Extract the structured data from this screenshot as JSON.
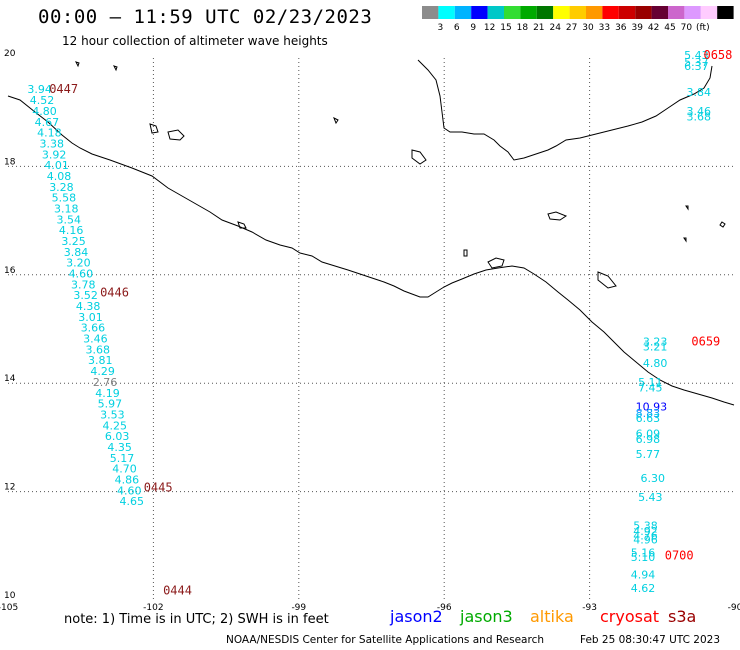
{
  "header": {
    "title": "00:00 – 11:59 UTC 02/23/2023",
    "subtitle": "12 hour collection of altimeter wave heights"
  },
  "colorbar": {
    "colors": [
      "#8c8c8c",
      "#00ffff",
      "#00b4ff",
      "#0000ff",
      "#00c8c8",
      "#33dd33",
      "#00aa00",
      "#007700",
      "#ffff00",
      "#ffcc00",
      "#ff9900",
      "#ff0000",
      "#cc0000",
      "#990000",
      "#660033",
      "#cc66cc",
      "#dd99ff",
      "#ffccff",
      "#000000"
    ],
    "labels": [
      "3",
      "6",
      "9",
      "12",
      "15",
      "18",
      "21",
      "24",
      "27",
      "30",
      "33",
      "36",
      "39",
      "42",
      "45",
      "70",
      "(ft)"
    ]
  },
  "axes": {
    "x_ticks": [
      "-105",
      "-102",
      "-99",
      "-96",
      "-93",
      "-90"
    ],
    "y_ticks": [
      "20",
      "18",
      "16",
      "14",
      "12",
      "10"
    ],
    "lon_range": [
      -105,
      -90
    ],
    "lat_range": [
      10,
      20
    ]
  },
  "tracks": [
    {
      "time": "0447",
      "time_color": "#8b1a1a",
      "time_lon": -104.15,
      "time_lat": 19.35,
      "points": [
        {
          "lon": -104.6,
          "lat": 19.35,
          "value": "3.94",
          "color": "#00d0e0"
        },
        {
          "lon": -104.55,
          "lat": 19.15,
          "value": "4.52",
          "color": "#00d0e0"
        },
        {
          "lon": -104.5,
          "lat": 18.95,
          "value": "4.80",
          "color": "#00d0e0"
        },
        {
          "lon": -104.45,
          "lat": 18.75,
          "value": "4.67",
          "color": "#00d0e0"
        },
        {
          "lon": -104.4,
          "lat": 18.55,
          "value": "4.18",
          "color": "#00d0e0"
        },
        {
          "lon": -104.35,
          "lat": 18.35,
          "value": "3.38",
          "color": "#00d0e0"
        },
        {
          "lon": -104.3,
          "lat": 18.15,
          "value": "3.92",
          "color": "#00d0e0"
        },
        {
          "lon": -104.25,
          "lat": 17.95,
          "value": "4.01",
          "color": "#00d0e0"
        },
        {
          "lon": -104.2,
          "lat": 17.75,
          "value": "4.08",
          "color": "#00d0e0"
        },
        {
          "lon": -104.15,
          "lat": 17.55,
          "value": "3.28",
          "color": "#00d0e0"
        },
        {
          "lon": -104.1,
          "lat": 17.35,
          "value": "5.58",
          "color": "#00d0e0"
        },
        {
          "lon": -104.05,
          "lat": 17.15,
          "value": "3.18",
          "color": "#00d0e0"
        },
        {
          "lon": -104.0,
          "lat": 16.95,
          "value": "3.54",
          "color": "#00d0e0"
        },
        {
          "lon": -103.95,
          "lat": 16.75,
          "value": "4.16",
          "color": "#00d0e0"
        }
      ]
    },
    {
      "time": "0446",
      "time_color": "#8b1a1a",
      "time_lon": -103.1,
      "time_lat": 15.6,
      "points": [
        {
          "lon": -103.9,
          "lat": 16.55,
          "value": "3.25",
          "color": "#00d0e0"
        },
        {
          "lon": -103.85,
          "lat": 16.35,
          "value": "3.84",
          "color": "#00d0e0"
        },
        {
          "lon": -103.8,
          "lat": 16.15,
          "value": "3.20",
          "color": "#00d0e0"
        },
        {
          "lon": -103.75,
          "lat": 15.95,
          "value": "4.60",
          "color": "#00d0e0"
        },
        {
          "lon": -103.7,
          "lat": 15.75,
          "value": "3.78",
          "color": "#00d0e0"
        },
        {
          "lon": -103.65,
          "lat": 15.55,
          "value": "3.52",
          "color": "#00d0e0"
        },
        {
          "lon": -103.6,
          "lat": 15.35,
          "value": "4.38",
          "color": "#00d0e0"
        },
        {
          "lon": -103.55,
          "lat": 15.15,
          "value": "3.01",
          "color": "#00d0e0"
        },
        {
          "lon": -103.5,
          "lat": 14.95,
          "value": "3.66",
          "color": "#00d0e0"
        },
        {
          "lon": -103.45,
          "lat": 14.75,
          "value": "3.46",
          "color": "#00d0e0"
        },
        {
          "lon": -103.4,
          "lat": 14.55,
          "value": "3.68",
          "color": "#00d0e0"
        },
        {
          "lon": -103.35,
          "lat": 14.35,
          "value": "3.81",
          "color": "#00d0e0"
        },
        {
          "lon": -103.3,
          "lat": 14.15,
          "value": "4.29",
          "color": "#00d0e0"
        },
        {
          "lon": -103.25,
          "lat": 13.95,
          "value": "2.76",
          "color": "#808080"
        },
        {
          "lon": -103.2,
          "lat": 13.75,
          "value": "4.19",
          "color": "#00d0e0"
        },
        {
          "lon": -103.15,
          "lat": 13.55,
          "value": "5.97",
          "color": "#00d0e0"
        }
      ]
    },
    {
      "time": "0445",
      "time_color": "#8b1a1a",
      "time_lon": -102.2,
      "time_lat": 12.0,
      "points": [
        {
          "lon": -103.1,
          "lat": 13.35,
          "value": "3.53",
          "color": "#00d0e0"
        },
        {
          "lon": -103.05,
          "lat": 13.15,
          "value": "4.25",
          "color": "#00d0e0"
        },
        {
          "lon": -103.0,
          "lat": 12.95,
          "value": "6.03",
          "color": "#00d0e0"
        },
        {
          "lon": -102.95,
          "lat": 12.75,
          "value": "4.35",
          "color": "#00d0e0"
        },
        {
          "lon": -102.9,
          "lat": 12.55,
          "value": "5.17",
          "color": "#00d0e0"
        },
        {
          "lon": -102.85,
          "lat": 12.35,
          "value": "4.70",
          "color": "#00d0e0"
        },
        {
          "lon": -102.8,
          "lat": 12.15,
          "value": "4.86",
          "color": "#00d0e0"
        },
        {
          "lon": -102.75,
          "lat": 11.95,
          "value": "4.60",
          "color": "#00d0e0"
        },
        {
          "lon": -102.7,
          "lat": 11.75,
          "value": "4.65",
          "color": "#00d0e0"
        }
      ]
    },
    {
      "time": "0444",
      "time_color": "#8b1a1a",
      "time_lon": -101.8,
      "time_lat": 10.1,
      "points": []
    },
    {
      "time": "0658",
      "time_color": "#ff0000",
      "time_lon": -90.65,
      "time_lat": 19.98,
      "points": [
        {
          "lon": -91.05,
          "lat": 19.98,
          "value": "5.43",
          "color": "#00d0e0"
        },
        {
          "lon": -91.05,
          "lat": 19.85,
          "value": "5.37",
          "color": "#00d0e0"
        },
        {
          "lon": -91.05,
          "lat": 19.78,
          "value": "6.37",
          "color": "#00d0e0"
        },
        {
          "lon": -91.0,
          "lat": 19.3,
          "value": "3.84",
          "color": "#00d0e0"
        },
        {
          "lon": -91.0,
          "lat": 18.95,
          "value": "3.46",
          "color": "#00d0e0"
        },
        {
          "lon": -91.0,
          "lat": 18.85,
          "value": "3.68",
          "color": "#00d0e0"
        }
      ]
    },
    {
      "time": "0659",
      "time_color": "#ff0000",
      "time_lon": -90.9,
      "time_lat": 14.7,
      "points": [
        {
          "lon": -91.9,
          "lat": 14.7,
          "value": "3.23",
          "color": "#00d0e0"
        },
        {
          "lon": -91.9,
          "lat": 14.6,
          "value": "3.21",
          "color": "#00d0e0"
        },
        {
          "lon": -91.9,
          "lat": 14.3,
          "value": "4.80",
          "color": "#00d0e0"
        },
        {
          "lon": -92.0,
          "lat": 13.95,
          "value": "5.11",
          "color": "#00d0e0"
        },
        {
          "lon": -92.0,
          "lat": 13.85,
          "value": "7.45",
          "color": "#00d0e0"
        },
        {
          "lon": -92.05,
          "lat": 13.5,
          "value": "10.93",
          "color": "#0000ff"
        },
        {
          "lon": -92.05,
          "lat": 13.38,
          "value": "8.83",
          "color": "#00a0ff"
        },
        {
          "lon": -92.05,
          "lat": 13.28,
          "value": "6.63",
          "color": "#00d0e0"
        },
        {
          "lon": -92.05,
          "lat": 13.0,
          "value": "6.09",
          "color": "#00d0e0"
        },
        {
          "lon": -92.05,
          "lat": 12.9,
          "value": "6.98",
          "color": "#00d0e0"
        },
        {
          "lon": -92.05,
          "lat": 12.62,
          "value": "5.77",
          "color": "#00d0e0"
        },
        {
          "lon": -91.95,
          "lat": 12.18,
          "value": "6.30",
          "color": "#00d0e0"
        },
        {
          "lon": -92.0,
          "lat": 11.83,
          "value": "5.43",
          "color": "#00d0e0"
        }
      ]
    },
    {
      "time": "0700",
      "time_color": "#ff0000",
      "time_lon": -91.45,
      "time_lat": 10.75,
      "points": [
        {
          "lon": -92.1,
          "lat": 11.3,
          "value": "5.38",
          "color": "#00d0e0"
        },
        {
          "lon": -92.1,
          "lat": 11.2,
          "value": "4.92",
          "color": "#00d0e0"
        },
        {
          "lon": -92.1,
          "lat": 11.12,
          "value": "4.76",
          "color": "#00d0e0"
        },
        {
          "lon": -92.1,
          "lat": 11.04,
          "value": "4.96",
          "color": "#00d0e0"
        },
        {
          "lon": -92.15,
          "lat": 10.8,
          "value": "5.16",
          "color": "#00d0e0"
        },
        {
          "lon": -92.15,
          "lat": 10.72,
          "value": "5.10",
          "color": "#00d0e0"
        },
        {
          "lon": -92.15,
          "lat": 10.4,
          "value": "4.94",
          "color": "#00d0e0"
        },
        {
          "lon": -92.15,
          "lat": 10.15,
          "value": "4.62",
          "color": "#00d0e0"
        }
      ]
    }
  ],
  "footer": {
    "note": "note:  1) Time is in UTC;  2) SWH is in feet",
    "satellites": [
      {
        "name": "jason2",
        "color": "#0000ff"
      },
      {
        "name": "jason3",
        "color": "#00aa00"
      },
      {
        "name": "altika",
        "color": "#ff9900"
      },
      {
        "name": "cryosat",
        "color": "#ff0000"
      },
      {
        "name": "s3a",
        "color": "#990000"
      }
    ],
    "credit": "NOAA/NESDIS Center for Satellite Applications and Research",
    "generated": "Feb 25 08:30:47 UTC 2023"
  }
}
